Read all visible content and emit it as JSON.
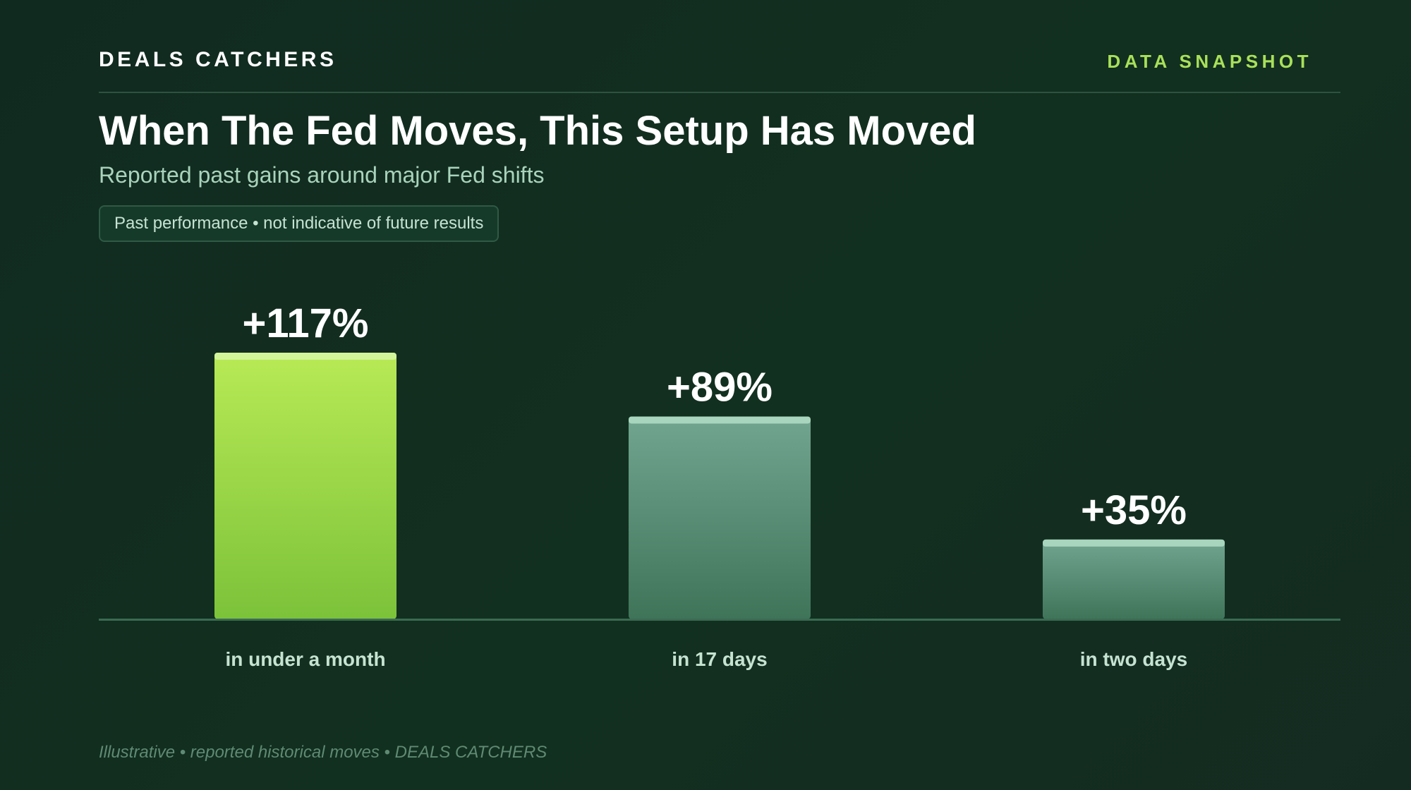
{
  "header": {
    "brand": "DEALS CATCHERS",
    "tag": "DATA SNAPSHOT"
  },
  "title": "When The Fed Moves, This Setup Has Moved",
  "subtitle": "Reported past gains around major Fed shifts",
  "disclaimer": "Past performance • not indicative of future results",
  "footer": "Illustrative • reported historical moves • DEALS CATCHERS",
  "colors": {
    "accent": "#a8e05a",
    "bar_highlight_top": "#b8ea55",
    "bar_highlight_bottom": "#7cc23a",
    "bar_highlight_cap": "#d2f59a",
    "bar_muted_top": "#72a590",
    "bar_muted_bottom": "#3f7459",
    "bar_muted_cap": "#a7d5bd",
    "baseline": "#3a6b52",
    "category_label": "#c6e3d2"
  },
  "chart_data": {
    "type": "bar",
    "categories": [
      "in under a month",
      "in 17 days",
      "in two days"
    ],
    "values": [
      117,
      89,
      35
    ],
    "value_labels": [
      "+117%",
      "+89%",
      "+35%"
    ],
    "highlight_index": 0,
    "ylim": [
      0,
      117
    ],
    "grid": false
  }
}
